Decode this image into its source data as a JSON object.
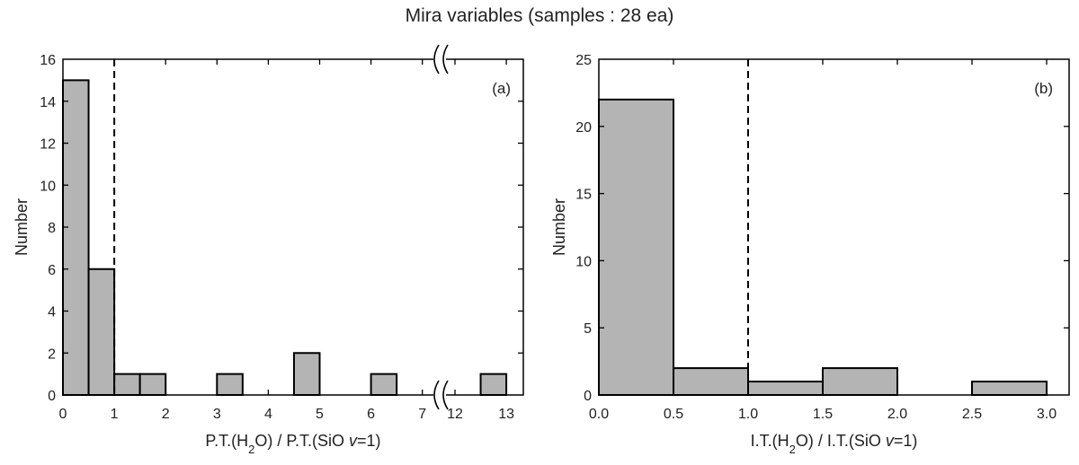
{
  "title": "Mira variables (samples : 28 ea)",
  "chart_data": [
    {
      "type": "bar",
      "panel_label": "(a)",
      "ylabel": "Number",
      "xlabel": {
        "pre": "P.T.(H",
        "sub": "2",
        "mid": "O) / P.T.(SiO ",
        "ital": "v",
        "post": "=1)"
      },
      "ylim": [
        0,
        16
      ],
      "yticks": [
        "0",
        "2",
        "4",
        "6",
        "8",
        "10",
        "12",
        "14",
        "16"
      ],
      "xticks": [
        "0",
        "1",
        "2",
        "3",
        "4",
        "5",
        "6",
        "7",
        "12",
        "13"
      ],
      "x_axis_break": "between 7 and 12",
      "threshold_line_x": 1,
      "bins": [
        {
          "range": [
            0.0,
            0.5
          ],
          "value": 15
        },
        {
          "range": [
            0.5,
            1.0
          ],
          "value": 6
        },
        {
          "range": [
            1.0,
            1.5
          ],
          "value": 1
        },
        {
          "range": [
            1.5,
            2.0
          ],
          "value": 1
        },
        {
          "range": [
            3.0,
            3.5
          ],
          "value": 1
        },
        {
          "range": [
            4.5,
            5.0
          ],
          "value": 2
        },
        {
          "range": [
            6.0,
            6.5
          ],
          "value": 1
        },
        {
          "range": [
            12.5,
            13.0
          ],
          "value": 1
        }
      ]
    },
    {
      "type": "bar",
      "panel_label": "(b)",
      "ylabel": "Number",
      "xlabel": {
        "pre": "I.T.(H",
        "sub": "2",
        "mid": "O) / I.T.(SiO ",
        "ital": "v",
        "post": "=1)"
      },
      "ylim": [
        0,
        25
      ],
      "xlim": [
        0.0,
        3.1
      ],
      "yticks": [
        "0",
        "5",
        "10",
        "15",
        "20",
        "25"
      ],
      "xticks": [
        "0.0",
        "0.5",
        "1.0",
        "1.5",
        "2.0",
        "2.5",
        "3.0"
      ],
      "threshold_line_x": 1.0,
      "bins": [
        {
          "range": [
            0.0,
            0.5
          ],
          "value": 22
        },
        {
          "range": [
            0.5,
            1.0
          ],
          "value": 2
        },
        {
          "range": [
            1.0,
            1.5
          ],
          "value": 1
        },
        {
          "range": [
            1.5,
            2.0
          ],
          "value": 2
        },
        {
          "range": [
            2.5,
            3.0
          ],
          "value": 1
        }
      ]
    }
  ]
}
